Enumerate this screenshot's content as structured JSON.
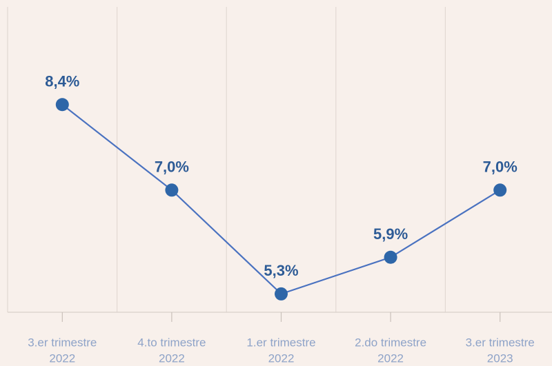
{
  "chart_data": {
    "type": "line",
    "categories": [
      [
        "3.er trimestre",
        "2022"
      ],
      [
        "4.to trimestre",
        "2022"
      ],
      [
        "1.er trimestre",
        "2022"
      ],
      [
        "2.do trimestre",
        "2022"
      ],
      [
        "3.er trimestre",
        "2023"
      ]
    ],
    "values": [
      8.4,
      7.0,
      5.3,
      5.9,
      7.0
    ],
    "value_labels": [
      "8,4%",
      "7,0%",
      "5,3%",
      "5,9%",
      "7,0%"
    ],
    "color": "#4a72c0",
    "marker_color": "#2e66a8",
    "ylim": [
      5,
      10
    ]
  }
}
